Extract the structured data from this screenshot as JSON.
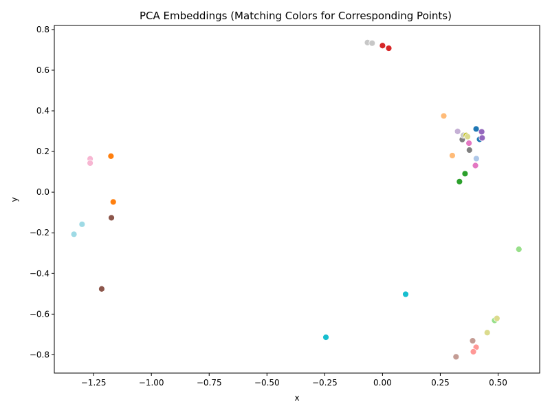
{
  "chart_data": {
    "type": "scatter",
    "title": "PCA Embeddings (Matching Colors for Corresponding Points)",
    "xlabel": "x",
    "ylabel": "y",
    "xlim": [
      -1.42,
      0.68
    ],
    "ylim": [
      -0.89,
      0.82
    ],
    "xticks": [
      -1.25,
      -1.0,
      -0.75,
      -0.5,
      -0.25,
      0.0,
      0.25,
      0.5
    ],
    "xtick_labels": [
      "−1.25",
      "−1.00",
      "−0.75",
      "−0.50",
      "−0.25",
      "0.00",
      "0.25",
      "0.50"
    ],
    "yticks": [
      -0.8,
      -0.6,
      -0.4,
      -0.2,
      0.0,
      0.2,
      0.4,
      0.6,
      0.8
    ],
    "ytick_labels": [
      "−0.8",
      "−0.6",
      "−0.4",
      "−0.2",
      "0.0",
      "0.2",
      "0.4",
      "0.6",
      "0.8"
    ],
    "grid": false,
    "points": [
      {
        "x": -0.065,
        "y": 0.736,
        "color": "#c7c7c7"
      },
      {
        "x": -0.045,
        "y": 0.733,
        "color": "#c7c7c7"
      },
      {
        "x": 0.0,
        "y": 0.721,
        "color": "#d62728"
      },
      {
        "x": 0.027,
        "y": 0.708,
        "color": "#d62728"
      },
      {
        "x": 0.265,
        "y": 0.375,
        "color": "#ffbb78"
      },
      {
        "x": 0.302,
        "y": 0.18,
        "color": "#ffbb78"
      },
      {
        "x": 0.325,
        "y": 0.299,
        "color": "#c5b0d5"
      },
      {
        "x": 0.345,
        "y": 0.259,
        "color": "#7f7f7f"
      },
      {
        "x": 0.35,
        "y": 0.28,
        "color": "#c7c7c7"
      },
      {
        "x": 0.362,
        "y": 0.279,
        "color": "#bcbd22"
      },
      {
        "x": 0.368,
        "y": 0.273,
        "color": "#dbdb8d"
      },
      {
        "x": 0.374,
        "y": 0.241,
        "color": "#e377c2"
      },
      {
        "x": 0.376,
        "y": 0.207,
        "color": "#7f7f7f"
      },
      {
        "x": 0.405,
        "y": 0.311,
        "color": "#1f77b4"
      },
      {
        "x": 0.42,
        "y": 0.26,
        "color": "#1f77b4"
      },
      {
        "x": 0.429,
        "y": 0.297,
        "color": "#9467bd"
      },
      {
        "x": 0.431,
        "y": 0.267,
        "color": "#9467bd"
      },
      {
        "x": 0.406,
        "y": 0.165,
        "color": "#aec7e8"
      },
      {
        "x": 0.402,
        "y": 0.131,
        "color": "#e377c2"
      },
      {
        "x": 0.357,
        "y": 0.091,
        "color": "#2ca02c"
      },
      {
        "x": 0.333,
        "y": 0.052,
        "color": "#2ca02c"
      },
      {
        "x": -1.265,
        "y": 0.164,
        "color": "#f7b6d2"
      },
      {
        "x": -1.265,
        "y": 0.143,
        "color": "#f7b6d2"
      },
      {
        "x": -1.175,
        "y": 0.177,
        "color": "#ff7f0e"
      },
      {
        "x": -1.165,
        "y": -0.048,
        "color": "#ff7f0e"
      },
      {
        "x": -1.173,
        "y": -0.126,
        "color": "#8c564b"
      },
      {
        "x": -1.215,
        "y": -0.476,
        "color": "#8c564b"
      },
      {
        "x": -1.3,
        "y": -0.158,
        "color": "#9edae5"
      },
      {
        "x": -1.335,
        "y": -0.207,
        "color": "#9edae5"
      },
      {
        "x": 0.1,
        "y": -0.502,
        "color": "#17becf"
      },
      {
        "x": -0.245,
        "y": -0.714,
        "color": "#17becf"
      },
      {
        "x": 0.59,
        "y": -0.281,
        "color": "#98df8a"
      },
      {
        "x": 0.485,
        "y": -0.631,
        "color": "#98df8a"
      },
      {
        "x": 0.495,
        "y": -0.621,
        "color": "#dbdb8d"
      },
      {
        "x": 0.453,
        "y": -0.691,
        "color": "#dbdb8d"
      },
      {
        "x": 0.39,
        "y": -0.731,
        "color": "#c49c94"
      },
      {
        "x": 0.318,
        "y": -0.81,
        "color": "#c49c94"
      },
      {
        "x": 0.405,
        "y": -0.763,
        "color": "#ff9896"
      },
      {
        "x": 0.393,
        "y": -0.785,
        "color": "#ff9896"
      }
    ]
  }
}
